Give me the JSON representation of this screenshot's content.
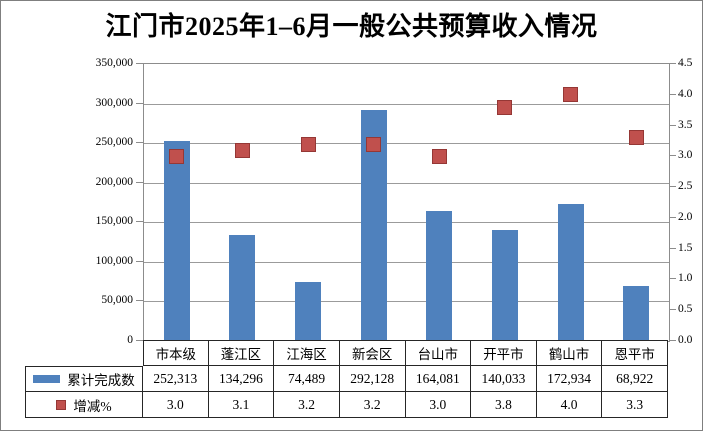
{
  "title": "江门市2025年1–6月一般公共预算收入情况",
  "chart_data": {
    "type": "bar",
    "subtype": "combo-bar-scatter",
    "title": "江门市2025年1–6月一般公共预算收入情况",
    "categories": [
      "市本级",
      "蓬江区",
      "江海区",
      "新会区",
      "台山市",
      "开平市",
      "鹤山市",
      "恩平市"
    ],
    "series": [
      {
        "name": "累计完成数",
        "type": "bar",
        "axis": "left",
        "values": [
          252313,
          134296,
          74489,
          292128,
          164081,
          140033,
          172934,
          68922
        ],
        "value_labels": [
          "252,313",
          "134,296",
          "74,489",
          "292,128",
          "164,081",
          "140,033",
          "172,934",
          "68,922"
        ],
        "color": "#4F81BD"
      },
      {
        "name": "增减%",
        "type": "scatter",
        "axis": "right",
        "values": [
          3.0,
          3.1,
          3.2,
          3.2,
          3.0,
          3.8,
          4.0,
          3.3
        ],
        "value_labels": [
          "3.0",
          "3.1",
          "3.2",
          "3.2",
          "3.0",
          "3.8",
          "4.0",
          "3.3"
        ],
        "color": "#C0504D",
        "border_color": "#953735"
      }
    ],
    "left_axis": {
      "min": 0,
      "max": 350000,
      "step": 50000,
      "tick_labels": [
        "0",
        "50,000",
        "100,000",
        "150,000",
        "200,000",
        "250,000",
        "300,000",
        "350,000"
      ]
    },
    "right_axis": {
      "min": 0,
      "max": 4.5,
      "step": 0.5,
      "tick_labels": [
        "0.0",
        "0.5",
        "1.0",
        "1.5",
        "2.0",
        "2.5",
        "3.0",
        "3.5",
        "4.0",
        "4.5"
      ]
    },
    "grid": true,
    "data_table": true,
    "legend_position": "data-table-left"
  },
  "colors": {
    "bar": "#4F81BD",
    "marker": "#C0504D",
    "marker_border": "#953735",
    "gridline": "#9b9b9b",
    "plot_border": "#8c8c8c",
    "table_border": "#262626"
  }
}
